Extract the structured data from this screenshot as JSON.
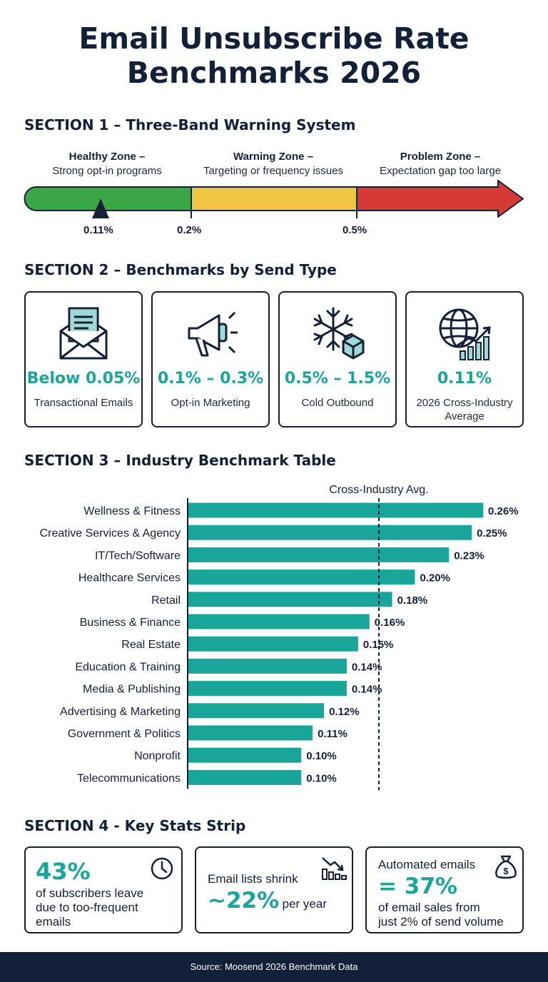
{
  "title_line1": "Email Unsubscribe Rate",
  "title_line2": "Benchmarks 2026",
  "section1": {
    "heading": "SECTION 1 – Three-Band Warning System",
    "zones": [
      {
        "name": "Healthy Zone –",
        "desc": "Strong opt-in programs",
        "color": "#3aa645"
      },
      {
        "name": "Warning Zone –",
        "desc": "Targeting or frequency issues",
        "color": "#f1c643"
      },
      {
        "name": "Problem Zone –",
        "desc": "Expectation gap too large",
        "color": "#d63a35"
      }
    ],
    "ticks": [
      "0.11%",
      "0.2%",
      "0.5%"
    ]
  },
  "section2": {
    "heading": "SECTION 2 – Benchmarks by Send Type",
    "cards": [
      {
        "value": "Below 0.05%",
        "label": "Transactional Emails",
        "icon": "envelope-receipt-icon"
      },
      {
        "value": "0.1% – 0.3%",
        "label": "Opt-in Marketing",
        "icon": "megaphone-icon"
      },
      {
        "value": "0.5% – 1.5%",
        "label": "Cold Outbound",
        "icon": "snowflake-box-icon"
      },
      {
        "value": "0.11%",
        "label": "2026 Cross-Industry Average",
        "icon": "globe-growth-icon"
      }
    ]
  },
  "section3": {
    "heading": "SECTION 3 – Industry Benchmark Table"
  },
  "chart_data": {
    "type": "bar",
    "orientation": "horizontal",
    "categories": [
      "Wellness & Fitness",
      "Creative Services & Agency",
      "IT/Tech/Software",
      "Healthcare Services",
      "Retail",
      "Business & Finance",
      "Real Estate",
      "Education & Training",
      "Media & Publishing",
      "Advertising & Marketing",
      "Government & Politics",
      "Nonprofit",
      "Telecommunications"
    ],
    "values": [
      0.26,
      0.25,
      0.23,
      0.2,
      0.18,
      0.16,
      0.15,
      0.14,
      0.14,
      0.12,
      0.11,
      0.1,
      0.1
    ],
    "value_labels": [
      "0.26%",
      "0.25%",
      "0.23%",
      "0.20%",
      "0.18%",
      "0.16%",
      "0.15%",
      "0.14%",
      "0.14%",
      "0.12%",
      "0.11%",
      "0.10%",
      "0.10%"
    ],
    "reference_line": {
      "label": "Cross-Industry Avg.",
      "value": 0.11,
      "style": "dashed"
    },
    "xlim": [
      0,
      0.27
    ],
    "bar_color": "#1aa59b",
    "grid": false
  },
  "section4": {
    "heading": "SECTION 4 - Key Stats Strip",
    "stat1": {
      "big": "43%",
      "text_line1": "of subscribers leave",
      "text_line2": "due to too-frequent",
      "text_line3": "emails",
      "icon": "clock-icon"
    },
    "stat2": {
      "text_top": "Email lists shrink",
      "big": "~22%",
      "text_after": "per year",
      "icon": "declining-chart-icon"
    },
    "stat3": {
      "text_top": "Automated emails",
      "big": "= 37%",
      "text_line1": "of email sales from",
      "text_line2": "just 2% of send volume",
      "icon": "money-bag-icon"
    }
  },
  "footer": "Source: Moosend 2026 Benchmark Data",
  "colors": {
    "navy": "#13203a",
    "teal": "#1aa59b",
    "green": "#3aa645",
    "yellow": "#f1c643",
    "red": "#d63a35"
  }
}
